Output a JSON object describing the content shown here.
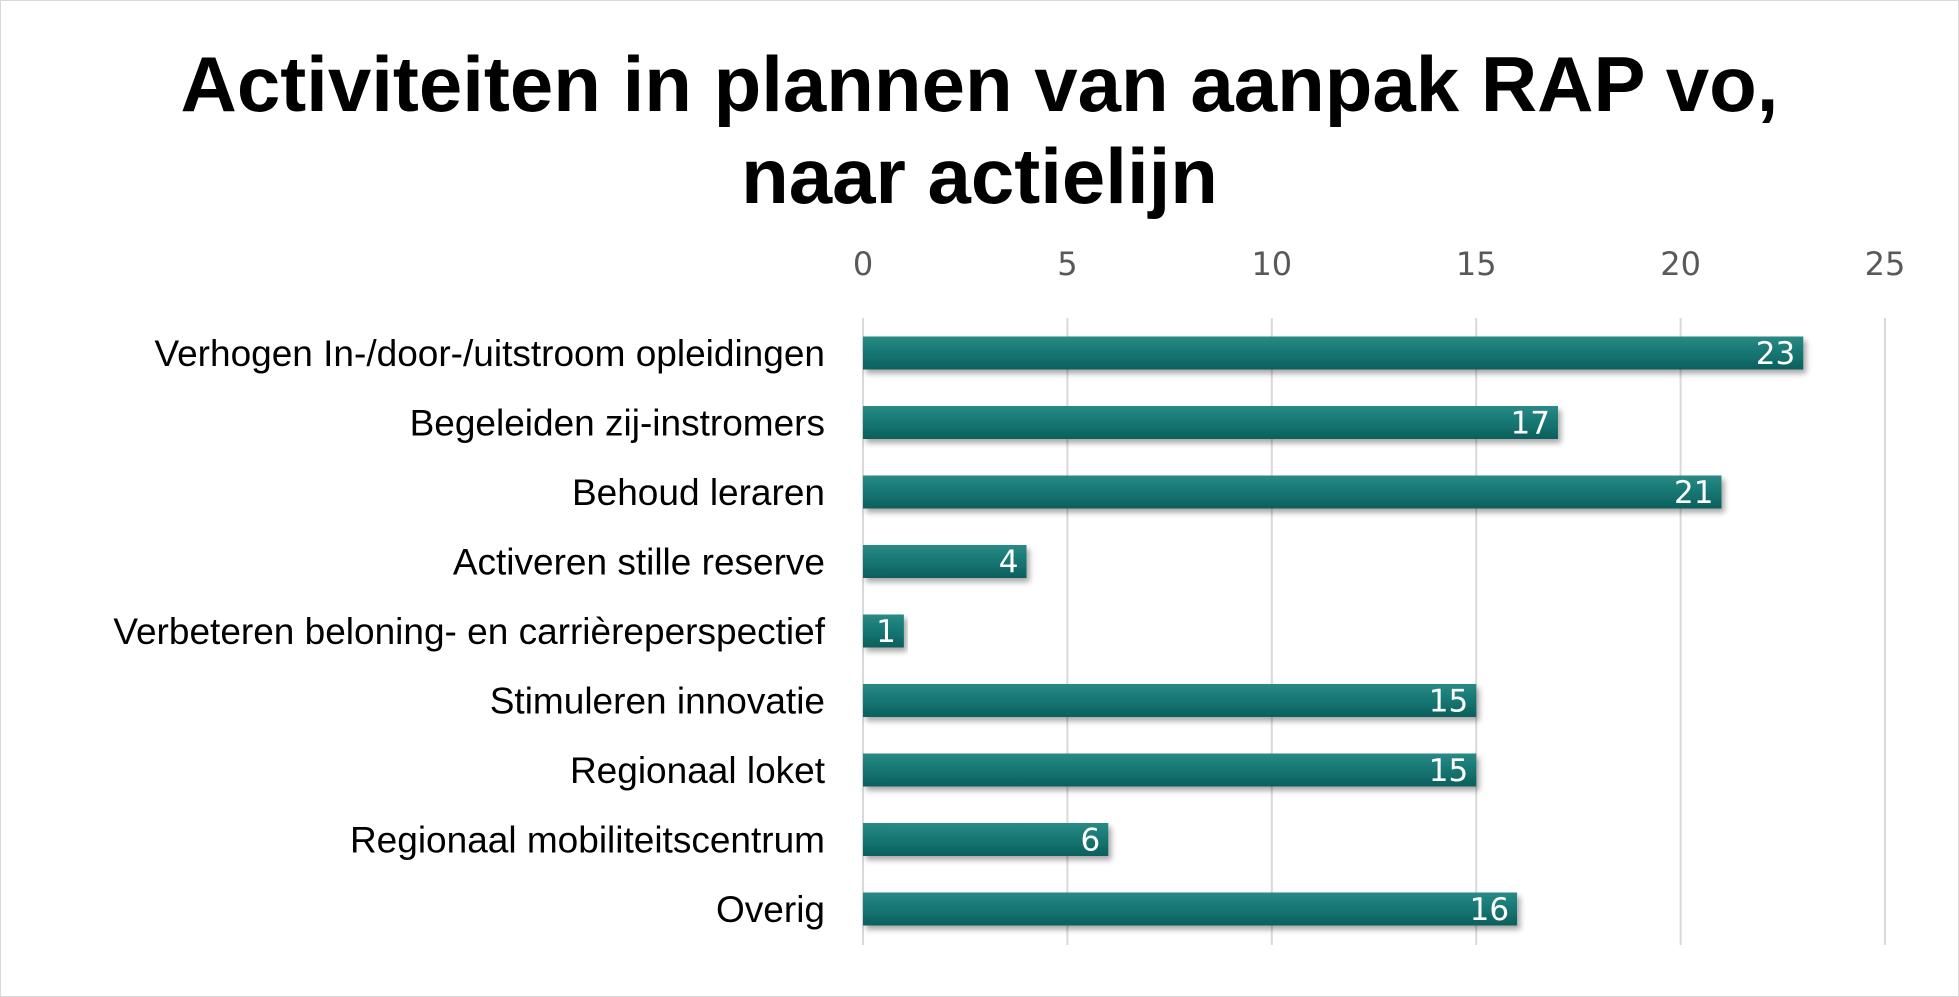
{
  "chart_data": {
    "type": "bar",
    "orientation": "horizontal",
    "title": "Activiteiten in plannen van aanpak RAP vo, naar actielijn",
    "title_lines": [
      "Activiteiten in plannen van aanpak RAP vo,",
      "naar actielijn"
    ],
    "categories": [
      "Verhogen In-/door-/uitstroom opleidingen",
      "Begeleiden zij-instromers",
      "Behoud leraren",
      "Activeren stille reserve",
      "Verbeteren beloning- en carrièreperspectief",
      "Stimuleren innovatie",
      "Regionaal loket",
      "Regionaal mobiliteitscentrum",
      "Overig"
    ],
    "values": [
      23,
      17,
      21,
      4,
      1,
      15,
      15,
      6,
      16
    ],
    "xlim": [
      0,
      25
    ],
    "ticks": [
      0,
      5,
      10,
      15,
      20,
      25
    ],
    "axis_position": "top",
    "grid": true,
    "data_labels": true,
    "bar_color": "#157672",
    "grid_color": "#d9d9d9"
  }
}
